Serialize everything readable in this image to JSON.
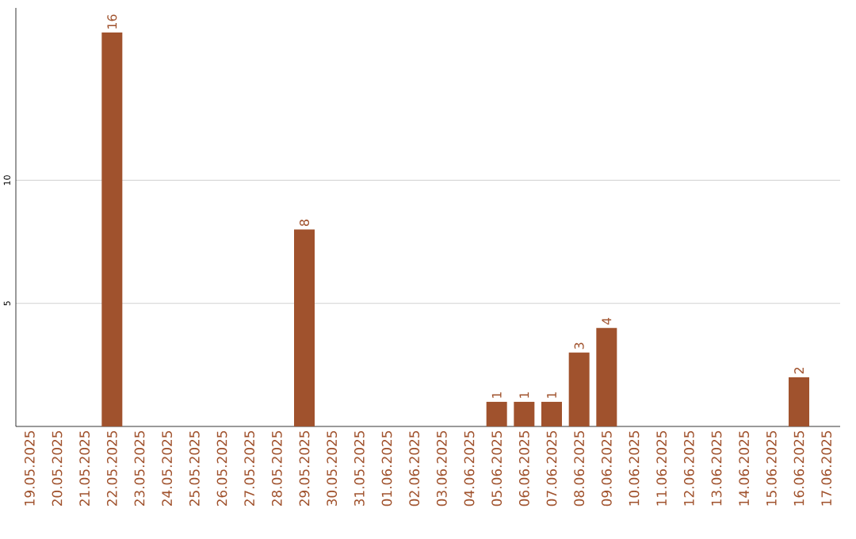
{
  "chart_data": {
    "type": "bar",
    "categories": [
      "19.05.2025",
      "20.05.2025",
      "21.05.2025",
      "22.05.2025",
      "23.05.2025",
      "24.05.2025",
      "25.05.2025",
      "26.05.2025",
      "27.05.2025",
      "28.05.2025",
      "29.05.2025",
      "30.05.2025",
      "31.05.2025",
      "01.06.2025",
      "02.06.2025",
      "03.06.2025",
      "04.06.2025",
      "05.06.2025",
      "06.06.2025",
      "07.06.2025",
      "08.06.2025",
      "09.06.2025",
      "10.06.2025",
      "11.06.2025",
      "12.06.2025",
      "13.06.2025",
      "14.06.2025",
      "15.06.2025",
      "16.06.2025",
      "17.06.2025"
    ],
    "values": [
      0,
      0,
      0,
      16,
      0,
      0,
      0,
      0,
      0,
      0,
      8,
      0,
      0,
      0,
      0,
      0,
      0,
      1,
      1,
      1,
      3,
      4,
      0,
      0,
      0,
      0,
      0,
      0,
      2,
      0
    ],
    "value_labels": [
      null,
      null,
      null,
      "16",
      null,
      null,
      null,
      null,
      null,
      null,
      "8",
      null,
      null,
      null,
      null,
      null,
      null,
      "1",
      "1",
      "1",
      "3",
      "4",
      null,
      null,
      null,
      null,
      null,
      null,
      "2",
      null
    ],
    "color": "#a0522d",
    "ylim": [
      0,
      17
    ],
    "yticks": [
      5,
      10
    ],
    "grid": "y"
  }
}
